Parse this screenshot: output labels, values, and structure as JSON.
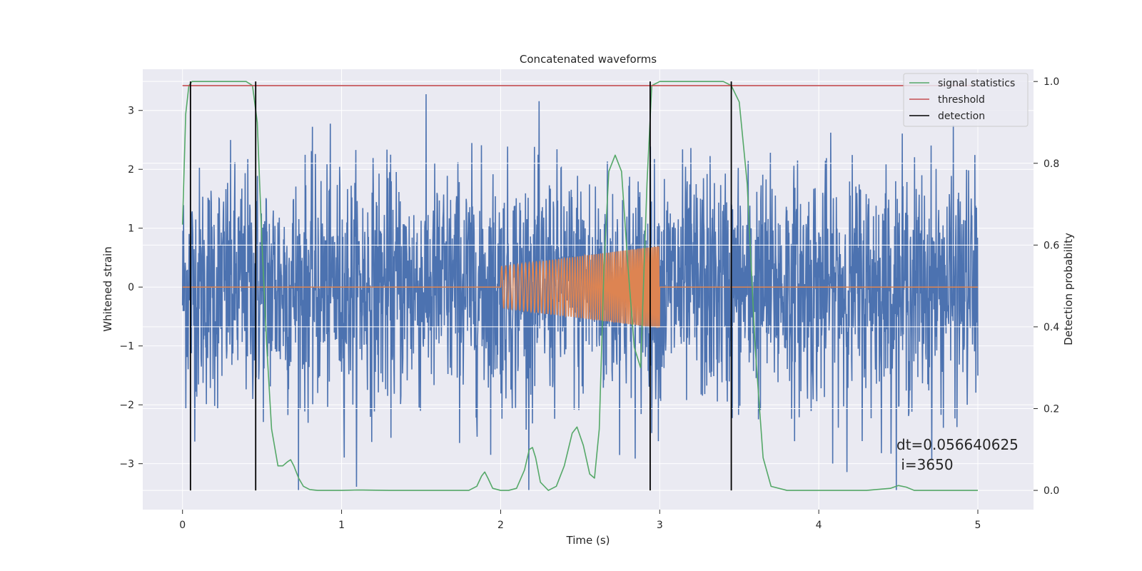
{
  "chart_data": {
    "type": "line",
    "title": "Concatenated waveforms",
    "xlabel": "Time (s)",
    "ylabel": "Whitened strain",
    "y2label": "Detection probability",
    "xlim": [
      -0.25,
      5.35
    ],
    "ylim": [
      -3.78,
      3.7
    ],
    "y2lim": [
      -0.047,
      1.03
    ],
    "x_ticks": [
      "0",
      "1",
      "2",
      "3",
      "4",
      "5"
    ],
    "y_ticks": [
      "3",
      "2",
      "1",
      "0",
      "−1",
      "−2",
      "−3"
    ],
    "y2_ticks": [
      "1.0",
      "0.8",
      "0.6",
      "0.4",
      "0.2",
      "0.0"
    ],
    "grid": true,
    "legend_position": "top-right",
    "legend": [
      "signal statistics",
      "threshold",
      "detection"
    ],
    "annotation_lines": [
      "dt=0.056640625",
      " i=3650"
    ],
    "colors": {
      "strain": "#4c72b0",
      "injected_signal": "#dd8452",
      "signal_statistics": "#55a868",
      "threshold": "#c44e52",
      "detection": "#000000",
      "plot_background": "#eaeaf2",
      "grid": "#ffffff"
    },
    "series": [
      {
        "name": "signal statistics",
        "axis": "right",
        "x": [
          0.0,
          0.02,
          0.04,
          0.06,
          0.08,
          0.1,
          0.2,
          0.3,
          0.4,
          0.44,
          0.47,
          0.5,
          0.53,
          0.56,
          0.6,
          0.63,
          0.66,
          0.68,
          0.7,
          0.73,
          0.76,
          0.8,
          0.85,
          0.9,
          1.0,
          1.1,
          1.3,
          1.6,
          1.8,
          1.85,
          1.88,
          1.9,
          1.92,
          1.95,
          2.0,
          2.05,
          2.1,
          2.15,
          2.18,
          2.2,
          2.22,
          2.25,
          2.3,
          2.35,
          2.4,
          2.45,
          2.48,
          2.52,
          2.56,
          2.59,
          2.62,
          2.65,
          2.68,
          2.72,
          2.76,
          2.8,
          2.84,
          2.88,
          2.92,
          2.95,
          3.0,
          3.1,
          3.2,
          3.3,
          3.4,
          3.45,
          3.5,
          3.55,
          3.6,
          3.65,
          3.7,
          3.8,
          4.0,
          4.3,
          4.45,
          4.5,
          4.55,
          4.6,
          4.7,
          5.0
        ],
        "y": [
          0.65,
          0.92,
          0.99,
          1.0,
          1.0,
          1.0,
          1.0,
          1.0,
          1.0,
          0.99,
          0.9,
          0.6,
          0.35,
          0.15,
          0.06,
          0.06,
          0.07,
          0.075,
          0.06,
          0.03,
          0.01,
          0.002,
          0.0,
          0.0,
          0.0,
          0.001,
          0.0,
          0.0,
          0.0,
          0.01,
          0.035,
          0.045,
          0.03,
          0.005,
          0.0,
          0.0,
          0.005,
          0.05,
          0.1,
          0.105,
          0.08,
          0.02,
          0.0,
          0.01,
          0.06,
          0.14,
          0.155,
          0.11,
          0.04,
          0.03,
          0.15,
          0.55,
          0.78,
          0.82,
          0.78,
          0.55,
          0.35,
          0.3,
          0.75,
          0.99,
          1.0,
          1.0,
          1.0,
          1.0,
          1.0,
          0.99,
          0.95,
          0.75,
          0.35,
          0.08,
          0.01,
          0.0,
          0.0,
          0.0,
          0.005,
          0.012,
          0.008,
          0.0,
          0.0,
          0.0
        ]
      },
      {
        "name": "threshold",
        "axis": "right",
        "x": [
          0.0,
          5.0
        ],
        "y": [
          0.99,
          0.99
        ]
      }
    ],
    "detections_x": [
      0.05,
      0.46,
      2.94,
      3.45
    ],
    "injected_signal": {
      "t_start": 2.0,
      "t_end": 3.0,
      "amplitude_start": 0.35,
      "amplitude_end": 0.7
    },
    "strain_noise": {
      "x_range": [
        0.0,
        5.0
      ],
      "typical_envelope": [
        -3.4,
        3.4
      ]
    }
  }
}
